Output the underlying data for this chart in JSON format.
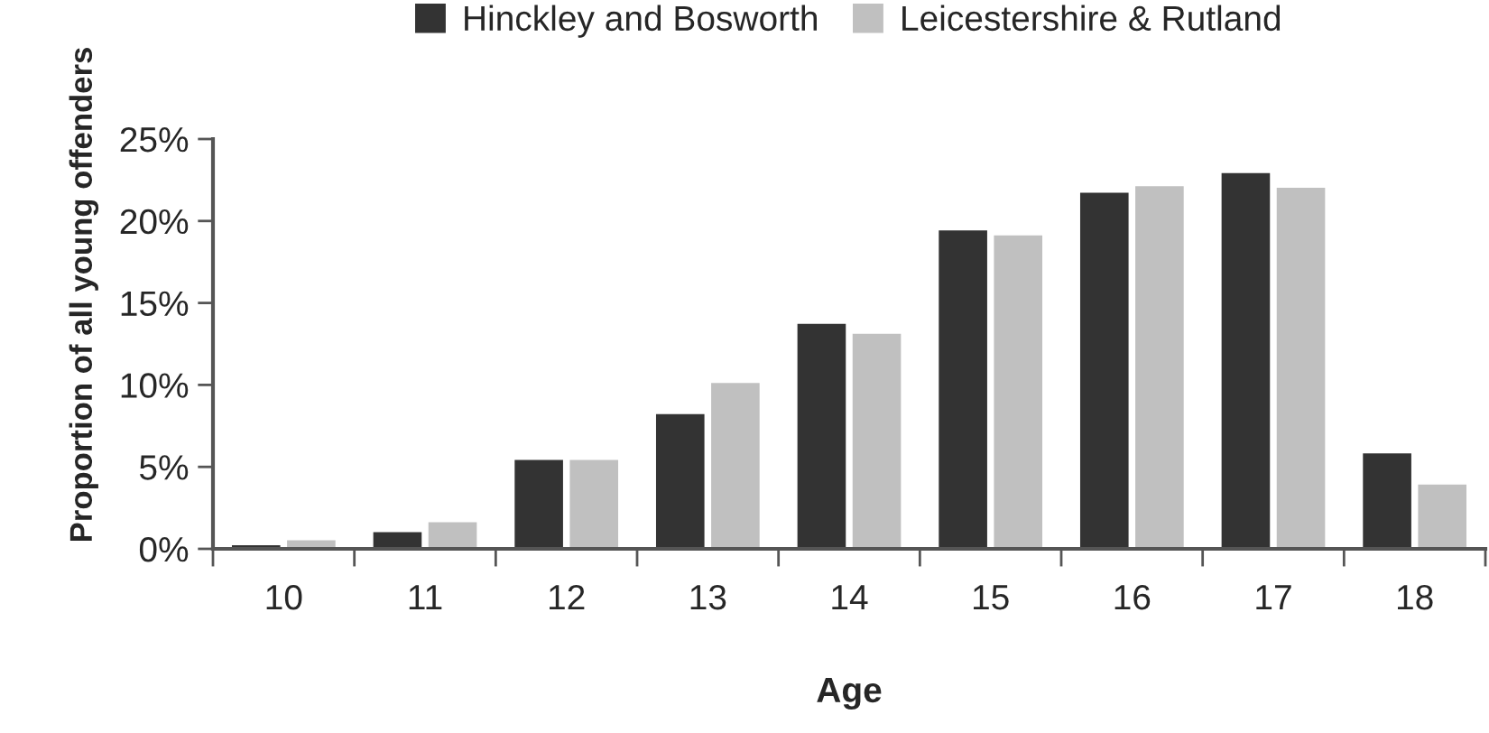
{
  "chart_data": {
    "type": "bar",
    "xlabel": "Age",
    "ylabel": "Proportion of all young offenders",
    "categories": [
      "10",
      "11",
      "12",
      "13",
      "14",
      "15",
      "16",
      "17",
      "18"
    ],
    "series": [
      {
        "name": "Hinckley and Bosworth",
        "color": "#333333",
        "values": [
          0.3,
          1.1,
          5.5,
          8.3,
          13.8,
          19.5,
          21.8,
          23.0,
          5.9
        ]
      },
      {
        "name": "Leicestershire & Rutland",
        "color": "#c0c0c0",
        "values": [
          0.6,
          1.7,
          5.5,
          10.2,
          13.2,
          19.2,
          22.2,
          22.1,
          4.0
        ]
      }
    ],
    "ylim": [
      0,
      25
    ],
    "yticks": [
      {
        "value": 0,
        "label": "0%"
      },
      {
        "value": 5,
        "label": "5%"
      },
      {
        "value": 10,
        "label": "10%"
      },
      {
        "value": 15,
        "label": "15%"
      },
      {
        "value": 20,
        "label": "20%"
      },
      {
        "value": 25,
        "label": "25%"
      }
    ],
    "grid": false,
    "legend": "top"
  }
}
